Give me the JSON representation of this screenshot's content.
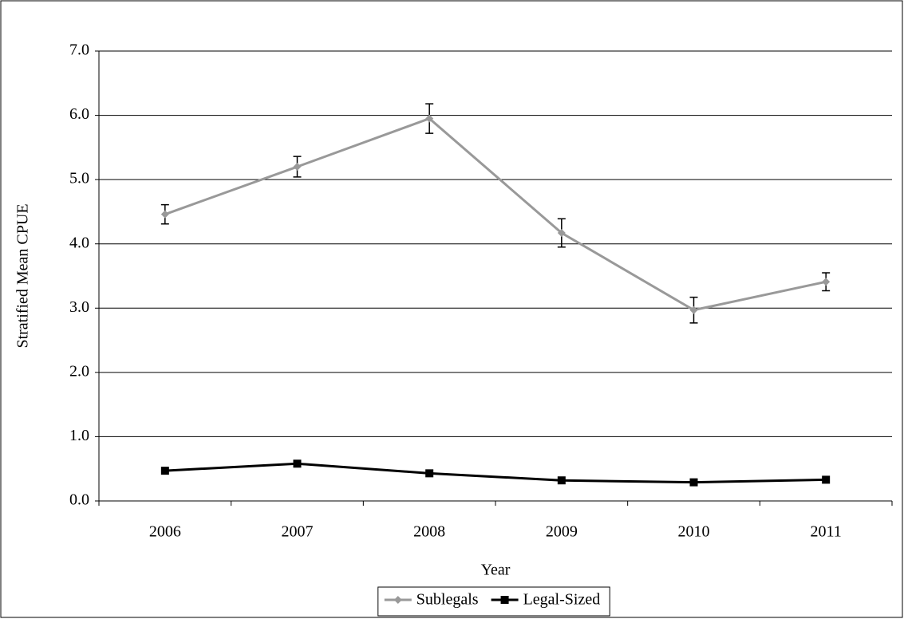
{
  "chart_data": {
    "type": "line",
    "x_label": "Year",
    "y_label": "Stratified Mean CPUE",
    "categories": [
      "2006",
      "2007",
      "2008",
      "2009",
      "2010",
      "2011"
    ],
    "series": [
      {
        "name": "Sublegals",
        "color": "#999999",
        "marker": "diamond",
        "values": [
          4.46,
          5.2,
          5.95,
          4.17,
          2.97,
          3.41
        ],
        "errors": [
          0.15,
          0.16,
          0.23,
          0.22,
          0.2,
          0.14
        ]
      },
      {
        "name": "Legal-Sized",
        "color": "#000000",
        "marker": "square",
        "values": [
          0.47,
          0.58,
          0.43,
          0.32,
          0.29,
          0.33
        ]
      }
    ],
    "ylim": [
      0,
      7
    ],
    "yticks": [
      {
        "value": 0,
        "label": "0.0"
      },
      {
        "value": 1,
        "label": "1.0"
      },
      {
        "value": 2,
        "label": "2.0"
      },
      {
        "value": 3,
        "label": "3.0"
      },
      {
        "value": 4,
        "label": "4.0"
      },
      {
        "value": 5,
        "label": "5.0"
      },
      {
        "value": 6,
        "label": "6.0"
      },
      {
        "value": 7,
        "label": "7.0"
      }
    ],
    "grid": true,
    "legend": "bottom"
  }
}
